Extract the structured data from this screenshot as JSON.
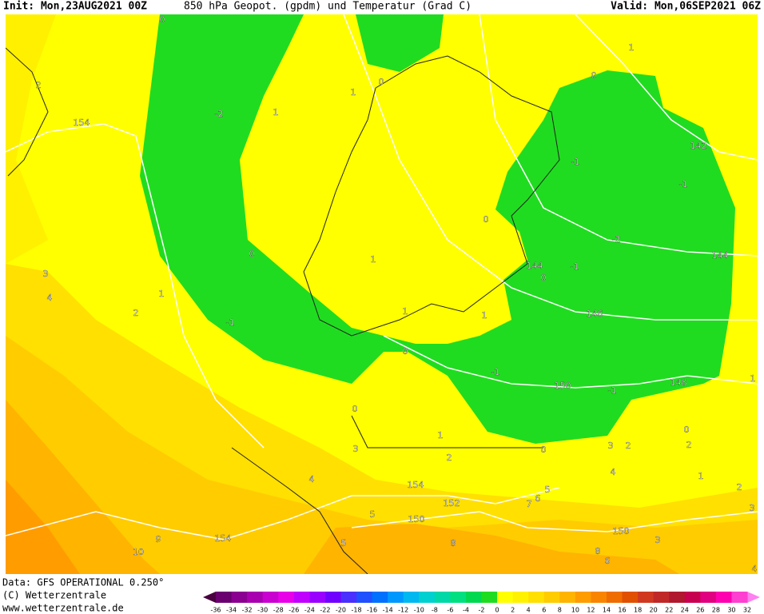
{
  "header": {
    "init": "Init: Mon,23AUG2021 00Z",
    "product": "850 hPa Geopot. (gpdm) und Temperatur (Grad C)",
    "valid": "Valid: Mon,06SEP2021 06Z"
  },
  "footer": {
    "data": "Data: GFS OPERATIONAL 0.250°",
    "copyright": "(C) Wetterzentrale",
    "url": "www.wetterzentrale.de"
  },
  "colorbar": {
    "labels": [
      "-36",
      "-34",
      "-32",
      "-30",
      "-28",
      "-26",
      "-24",
      "-22",
      "-20",
      "-18",
      "-16",
      "-14",
      "-12",
      "-10",
      "-8",
      "-6",
      "-4",
      "-2",
      "0",
      "2",
      "4",
      "6",
      "8",
      "10",
      "12",
      "14",
      "16",
      "18",
      "20",
      "22",
      "24",
      "26",
      "28",
      "30",
      "32"
    ],
    "under": "#4a0040",
    "over": "#ff80f0",
    "colors": [
      "#6a0070",
      "#8a0090",
      "#a800b0",
      "#c800d0",
      "#e800e8",
      "#c000ff",
      "#9a00ff",
      "#7000ff",
      "#4a30ff",
      "#2050ff",
      "#0070ff",
      "#0098ff",
      "#00b8f0",
      "#00d0d0",
      "#00d8a8",
      "#00e080",
      "#00d850",
      "#20dc20",
      "#ffff00",
      "#fff200",
      "#ffe000",
      "#ffcc00",
      "#ffb400",
      "#ff9c00",
      "#f88400",
      "#ee6c00",
      "#e05000",
      "#d03820",
      "#c02828",
      "#b01830",
      "#c80050",
      "#e00080",
      "#ff00b0",
      "#ff40d0"
    ]
  },
  "map": {
    "labels": [
      "0",
      "2",
      "-2",
      "1",
      "154",
      "1",
      "0",
      "0",
      "1",
      "142",
      "-1",
      "-1",
      "0",
      "-2",
      "0",
      "1",
      "144",
      "-1",
      "0",
      "144",
      "3",
      "4",
      "1",
      "2",
      "-1",
      "1",
      "1",
      "146",
      "0",
      "-1",
      "150",
      "-1",
      "148",
      "0",
      "0",
      "1",
      "3",
      "2",
      "0",
      "3",
      "2",
      "2",
      "4",
      "154",
      "4",
      "1",
      "2",
      "152",
      "5",
      "7",
      "6",
      "5",
      "150",
      "150",
      "154",
      "9",
      "10",
      "8",
      "3",
      "3",
      "1",
      "8",
      "6",
      "5",
      "4"
    ]
  }
}
